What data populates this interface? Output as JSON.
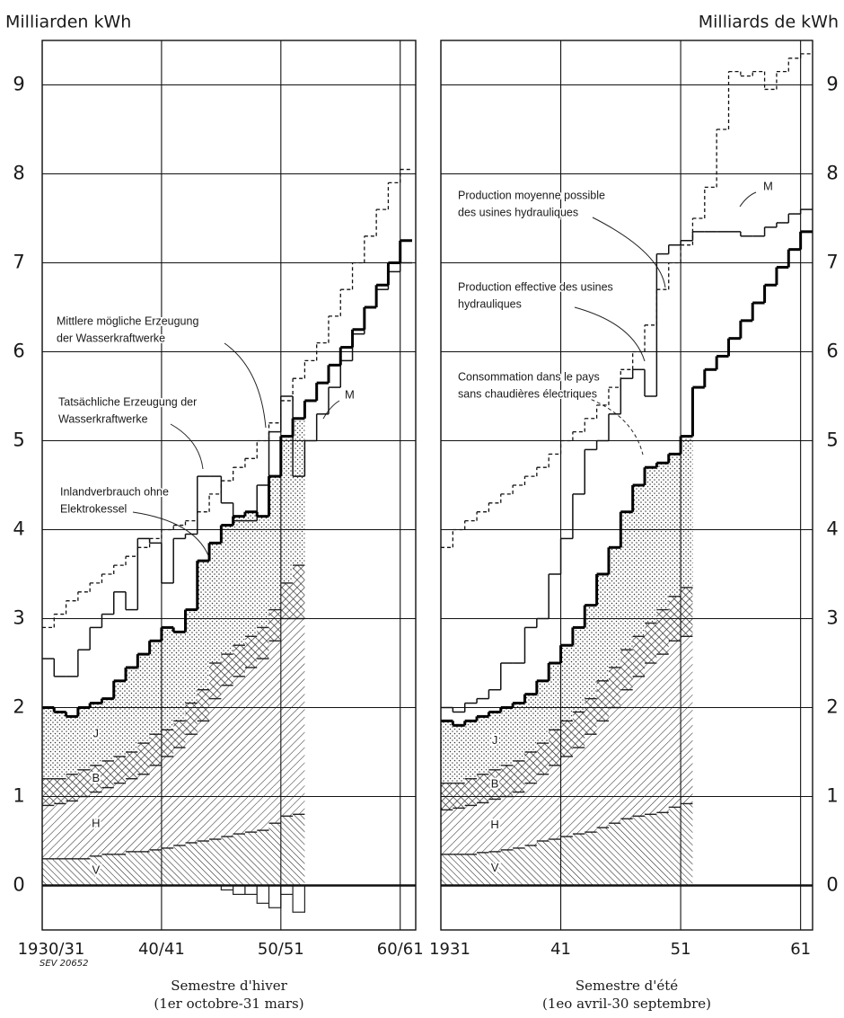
{
  "chart_data": [
    {
      "type": "step",
      "title": "Milliarden kWh",
      "source": "SEV 20652",
      "caption": [
        "Semestre d'hiver",
        "(1er octobre-31 mars)"
      ],
      "x": [
        1930,
        1931,
        1932,
        1933,
        1934,
        1935,
        1936,
        1937,
        1938,
        1939,
        1940,
        1941,
        1942,
        1943,
        1944,
        1945,
        1946,
        1947,
        1948,
        1949,
        1950,
        1951,
        1952,
        1953,
        1954,
        1955,
        1956,
        1957,
        1958,
        1959,
        1960
      ],
      "xlim": [
        1930,
        1961.3
      ],
      "xticks": [
        {
          "value": 1930,
          "label": "1930/31"
        },
        {
          "value": 1940,
          "label": "40/41"
        },
        {
          "value": 1950,
          "label": "50/51"
        },
        {
          "value": 1960,
          "label": "60/61"
        }
      ],
      "ylim": [
        -0.5,
        9.5
      ],
      "yticks": [
        0,
        1,
        2,
        3,
        4,
        5,
        6,
        7,
        8,
        9
      ],
      "grid": true,
      "axis_side": "left",
      "annotations": [
        {
          "lines": [
            "Mittlere mögliche Erzeugung",
            "der Wasserkraftwerke"
          ]
        },
        {
          "lines": [
            "Tatsächliche Erzeugung der",
            "Wasserkraftwerke"
          ]
        },
        {
          "lines": [
            "Inlandverbrauch ohne",
            "Elektrokessel"
          ]
        }
      ],
      "series": [
        {
          "name": "V",
          "stack": true,
          "pattern": "hatch-back",
          "values": [
            0.3,
            0.3,
            0.3,
            0.3,
            0.33,
            0.35,
            0.35,
            0.38,
            0.38,
            0.4,
            0.42,
            0.45,
            0.48,
            0.5,
            0.52,
            0.55,
            0.58,
            0.6,
            0.62,
            0.7,
            0.78,
            0.8,
            null,
            null,
            null,
            null,
            null,
            null,
            null,
            null,
            null
          ]
        },
        {
          "name": "H",
          "stack": true,
          "pattern": "hatch",
          "values": [
            0.6,
            0.62,
            0.65,
            0.7,
            0.72,
            0.75,
            0.8,
            0.82,
            0.87,
            0.95,
            1.03,
            1.1,
            1.22,
            1.35,
            1.58,
            1.7,
            1.77,
            1.85,
            1.93,
            2.05,
            2.22,
            2.2,
            null,
            null,
            null,
            null,
            null,
            null,
            null,
            null,
            null
          ]
        },
        {
          "name": "B",
          "stack": true,
          "pattern": "cross",
          "values": [
            0.3,
            0.28,
            0.3,
            0.3,
            0.3,
            0.3,
            0.3,
            0.3,
            0.35,
            0.35,
            0.3,
            0.3,
            0.35,
            0.35,
            0.4,
            0.35,
            0.35,
            0.35,
            0.35,
            0.35,
            0.4,
            0.6,
            null,
            null,
            null,
            null,
            null,
            null,
            null,
            null,
            null
          ]
        },
        {
          "name": "J",
          "stack": true,
          "pattern": "dots",
          "values": [
            0.8,
            0.75,
            0.65,
            0.7,
            0.7,
            0.7,
            0.85,
            0.95,
            1.0,
            1.05,
            1.15,
            1.0,
            1.05,
            1.45,
            1.35,
            1.45,
            1.45,
            1.4,
            1.25,
            1.5,
            1.65,
            1.65,
            null,
            null,
            null,
            null,
            null,
            null,
            null,
            null,
            null
          ]
        },
        {
          "style": "negative",
          "values": [
            0,
            0,
            0,
            0,
            0,
            0,
            0,
            0,
            0,
            0,
            0,
            0,
            0,
            0,
            0,
            -0.05,
            -0.1,
            -0.1,
            -0.2,
            -0.25,
            -0.1,
            -0.3,
            null,
            null,
            null,
            null,
            null,
            null,
            null,
            null,
            null
          ]
        },
        {
          "style": "dashed",
          "values": [
            2.9,
            3.05,
            3.2,
            3.3,
            3.4,
            3.5,
            3.6,
            3.7,
            3.8,
            3.9,
            4.0,
            4.05,
            4.1,
            4.2,
            4.4,
            4.55,
            4.7,
            4.8,
            5.0,
            5.2,
            5.45,
            5.7,
            5.9,
            6.1,
            6.4,
            6.7,
            7.0,
            7.3,
            7.6,
            7.9,
            8.05
          ]
        },
        {
          "name": "M",
          "style": "thin",
          "values": [
            2.55,
            2.35,
            2.35,
            2.65,
            2.9,
            3.05,
            3.3,
            3.1,
            3.9,
            3.85,
            3.4,
            3.9,
            3.95,
            4.6,
            4.6,
            4.3,
            4.1,
            4.1,
            4.5,
            5.1,
            5.5,
            4.6,
            5.0,
            5.3,
            5.6,
            5.9,
            6.2,
            6.5,
            6.7,
            6.9,
            7.0
          ]
        },
        {
          "style": "thick",
          "values": [
            2.0,
            1.95,
            1.9,
            2.0,
            2.05,
            2.1,
            2.3,
            2.45,
            2.6,
            2.75,
            2.9,
            2.85,
            3.1,
            3.65,
            3.85,
            4.05,
            4.15,
            4.2,
            4.15,
            4.6,
            5.05,
            5.25,
            5.45,
            5.65,
            5.85,
            6.05,
            6.25,
            6.5,
            6.75,
            7.0,
            7.25
          ]
        }
      ]
    },
    {
      "type": "step",
      "title": "Milliards de kWh",
      "caption": [
        "Semestre d'été",
        "(1eo avril-30 septembre)"
      ],
      "x": [
        1931,
        1932,
        1933,
        1934,
        1935,
        1936,
        1937,
        1938,
        1939,
        1940,
        1941,
        1942,
        1943,
        1944,
        1945,
        1946,
        1947,
        1948,
        1949,
        1950,
        1951,
        1952,
        1953,
        1954,
        1955,
        1956,
        1957,
        1958,
        1959,
        1960,
        1961
      ],
      "xlim": [
        1931,
        1962
      ],
      "xticks": [
        {
          "value": 1931,
          "label": "1931"
        },
        {
          "value": 1941,
          "label": "41"
        },
        {
          "value": 1951,
          "label": "51"
        },
        {
          "value": 1961,
          "label": "61"
        }
      ],
      "ylim": [
        -0.5,
        9.5
      ],
      "yticks": [
        0,
        1,
        2,
        3,
        4,
        5,
        6,
        7,
        8,
        9
      ],
      "grid": true,
      "axis_side": "right",
      "annotations": [
        {
          "lines": [
            "Production moyenne possible",
            "des usines hydrauliques"
          ]
        },
        {
          "lines": [
            "Production effective des usines",
            "hydrauliques"
          ]
        },
        {
          "lines": [
            "Consommation dans le pays",
            "sans chaudières électriques"
          ]
        }
      ],
      "series": [
        {
          "name": "V",
          "stack": true,
          "pattern": "hatch-back",
          "values": [
            0.35,
            0.35,
            0.35,
            0.37,
            0.38,
            0.4,
            0.42,
            0.45,
            0.5,
            0.52,
            0.55,
            0.58,
            0.6,
            0.65,
            0.7,
            0.75,
            0.78,
            0.8,
            0.82,
            0.88,
            0.92,
            null,
            null,
            null,
            null,
            null,
            null,
            null,
            null,
            null,
            null
          ]
        },
        {
          "name": "H",
          "stack": true,
          "pattern": "hatch",
          "values": [
            0.5,
            0.52,
            0.55,
            0.56,
            0.59,
            0.6,
            0.63,
            0.7,
            0.75,
            0.83,
            0.9,
            0.97,
            1.1,
            1.2,
            1.3,
            1.45,
            1.57,
            1.7,
            1.78,
            1.87,
            1.88,
            null,
            null,
            null,
            null,
            null,
            null,
            null,
            null,
            null,
            null
          ]
        },
        {
          "name": "B",
          "stack": true,
          "pattern": "cross",
          "values": [
            0.3,
            0.28,
            0.3,
            0.32,
            0.33,
            0.35,
            0.35,
            0.35,
            0.35,
            0.4,
            0.4,
            0.4,
            0.4,
            0.45,
            0.45,
            0.45,
            0.45,
            0.45,
            0.5,
            0.5,
            0.55,
            null,
            null,
            null,
            null,
            null,
            null,
            null,
            null,
            null,
            null
          ]
        },
        {
          "name": "J",
          "stack": true,
          "pattern": "dots",
          "values": [
            0.7,
            0.65,
            0.65,
            0.65,
            0.65,
            0.65,
            0.65,
            0.65,
            0.7,
            0.75,
            0.85,
            0.95,
            1.05,
            1.2,
            1.35,
            1.55,
            1.7,
            1.75,
            1.65,
            1.6,
            1.7,
            null,
            null,
            null,
            null,
            null,
            null,
            null,
            null,
            null,
            null
          ]
        },
        {
          "style": "dashed",
          "values": [
            3.8,
            4.0,
            4.1,
            4.2,
            4.3,
            4.4,
            4.5,
            4.6,
            4.7,
            4.85,
            5.0,
            5.1,
            5.25,
            5.4,
            5.6,
            5.8,
            6.0,
            6.3,
            6.7,
            7.0,
            7.2,
            7.5,
            7.85,
            8.5,
            9.15,
            9.1,
            9.15,
            8.95,
            9.15,
            9.3,
            9.35
          ]
        },
        {
          "name": "M",
          "style": "thin",
          "values": [
            2.0,
            1.95,
            2.05,
            2.1,
            2.2,
            2.5,
            2.5,
            2.9,
            3.0,
            3.5,
            3.9,
            4.4,
            4.9,
            5.0,
            5.3,
            5.7,
            5.8,
            5.5,
            7.1,
            7.2,
            7.25,
            7.35,
            7.35,
            7.35,
            7.35,
            7.3,
            7.3,
            7.4,
            7.45,
            7.55,
            7.6
          ]
        },
        {
          "style": "thick",
          "values": [
            1.85,
            1.8,
            1.85,
            1.9,
            1.95,
            2.0,
            2.05,
            2.15,
            2.3,
            2.5,
            2.7,
            2.9,
            3.15,
            3.5,
            3.8,
            4.2,
            4.5,
            4.7,
            4.75,
            4.85,
            5.05,
            5.6,
            5.8,
            5.95,
            6.15,
            6.35,
            6.55,
            6.75,
            6.95,
            7.15,
            7.35
          ]
        }
      ]
    }
  ]
}
